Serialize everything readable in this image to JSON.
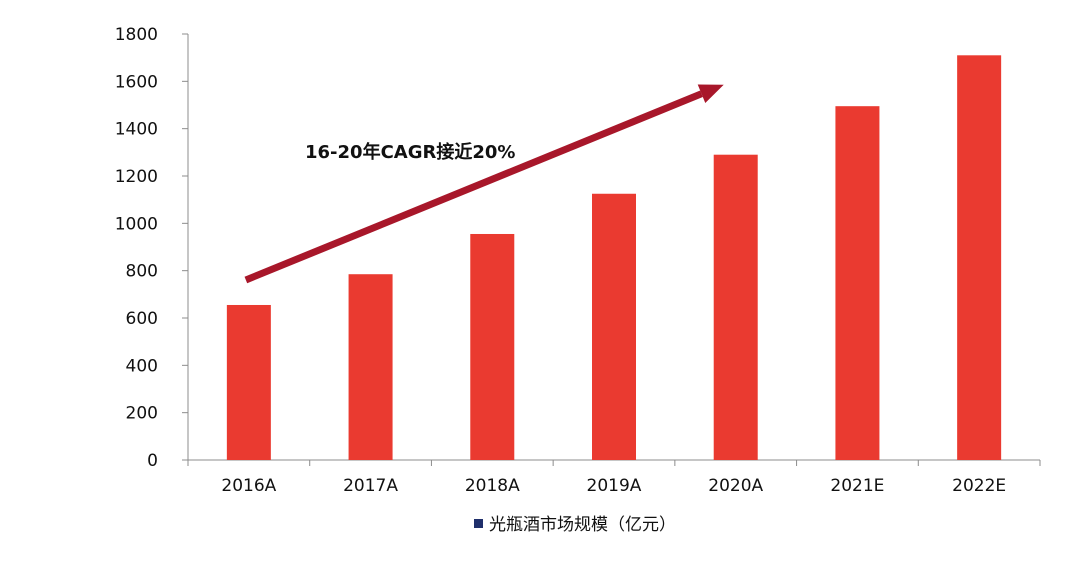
{
  "chart_data": {
    "type": "bar",
    "title": "",
    "xlabel": "",
    "ylabel": "",
    "categories": [
      "2016A",
      "2017A",
      "2018A",
      "2019A",
      "2020A",
      "2021E",
      "2022E"
    ],
    "series": [
      {
        "name": "光瓶酒市场规模（亿元）",
        "color": "#EA3A30",
        "values": [
          655,
          785,
          955,
          1125,
          1290,
          1495,
          1710
        ]
      }
    ],
    "ylim": [
      0,
      1800
    ],
    "yticks": [
      0,
      200,
      400,
      600,
      800,
      1000,
      1200,
      1400,
      1600,
      1800
    ],
    "grid": false,
    "legend": {
      "position": "bottom",
      "marker_color": "#1F2F6B",
      "label": "光瓶酒市场规模（亿元）"
    },
    "annotation": {
      "text": "16-20年CAGR接近20%",
      "arrow_color": "#A8172A",
      "from_category": "2016A",
      "to_category": "2020A"
    }
  }
}
